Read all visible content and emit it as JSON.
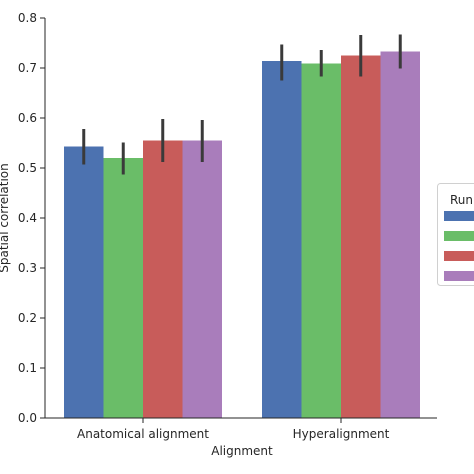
{
  "chart_data": {
    "type": "bar",
    "categories": [
      "Anatomical alignment",
      "Hyperalignment"
    ],
    "xlabel": "Alignment",
    "ylabel": "Spatial correlation",
    "ylim": [
      0.0,
      0.8
    ],
    "yticks": [
      "0.0",
      "0.1",
      "0.2",
      "0.3",
      "0.4",
      "0.5",
      "0.6",
      "0.7",
      "0.8"
    ],
    "grid": false,
    "legend": {
      "title": "Run",
      "placement": "right"
    },
    "series": [
      {
        "color": "#4C72B0",
        "values": [
          0.543,
          0.714
        ],
        "error_low": [
          0.507,
          0.675
        ],
        "error_high": [
          0.578,
          0.747
        ]
      },
      {
        "color": "#6ABD68",
        "values": [
          0.52,
          0.709
        ],
        "error_low": [
          0.487,
          0.683
        ],
        "error_high": [
          0.551,
          0.736
        ]
      },
      {
        "color": "#C85C5A",
        "values": [
          0.555,
          0.725
        ],
        "error_low": [
          0.512,
          0.683
        ],
        "error_high": [
          0.598,
          0.766
        ]
      },
      {
        "color": "#A97DBB",
        "values": [
          0.555,
          0.733
        ],
        "error_low": [
          0.512,
          0.699
        ],
        "error_high": [
          0.596,
          0.767
        ]
      }
    ]
  }
}
